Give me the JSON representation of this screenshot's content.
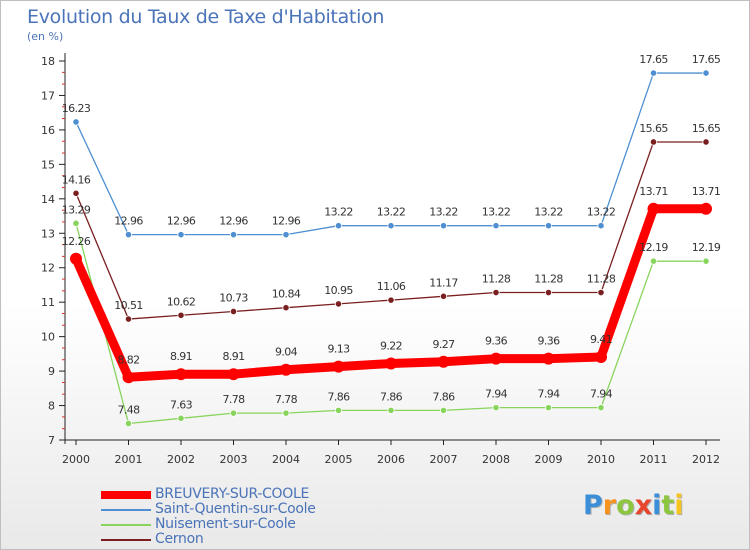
{
  "chart_data": {
    "type": "line",
    "title": "Evolution du Taux de Taxe d'Habitation",
    "subtitle": "(en %)",
    "xlabel": "",
    "ylabel": "",
    "ylim": [
      7,
      18
    ],
    "yticks": [
      "7",
      "8",
      "9",
      "10",
      "11",
      "12",
      "13",
      "14",
      "15",
      "16",
      "17",
      "18"
    ],
    "x": [
      "2000",
      "2001",
      "2002",
      "2003",
      "2004",
      "2005",
      "2006",
      "2007",
      "2008",
      "2009",
      "2010",
      "2011",
      "2012"
    ],
    "series": [
      {
        "name": "BREUVERY-SUR-COOLE",
        "color": "#ff0000",
        "values": [
          12.26,
          8.82,
          8.91,
          8.91,
          9.04,
          9.13,
          9.22,
          9.27,
          9.36,
          9.36,
          9.41,
          13.71,
          13.71
        ],
        "labels": [
          "12.26",
          "8.82",
          "8.91",
          "8.91",
          "9.04",
          "9.13",
          "9.22",
          "9.27",
          "9.36",
          "9.36",
          "9.41",
          "13.71",
          "13.71"
        ]
      },
      {
        "name": "Saint-Quentin-sur-Coole",
        "color": "#4d8fd1",
        "values": [
          16.23,
          12.96,
          12.96,
          12.96,
          12.96,
          13.22,
          13.22,
          13.22,
          13.22,
          13.22,
          13.22,
          17.65,
          17.65
        ],
        "labels": [
          "16.23",
          "12.96",
          "12.96",
          "12.96",
          "12.96",
          "13.22",
          "13.22",
          "13.22",
          "13.22",
          "13.22",
          "13.22",
          "17.65",
          "17.65"
        ]
      },
      {
        "name": "Nuisement-sur-Coole",
        "color": "#88d45c",
        "values": [
          13.29,
          7.48,
          7.63,
          7.78,
          7.78,
          7.86,
          7.86,
          7.86,
          7.94,
          7.94,
          7.94,
          12.19,
          12.19
        ],
        "labels": [
          "13.29",
          "7.48",
          "7.63",
          "7.78",
          "7.78",
          "7.86",
          "7.86",
          "7.86",
          "7.94",
          "7.94",
          "7.94",
          "12.19",
          "12.19"
        ]
      },
      {
        "name": "Cernon",
        "color": "#7a1f1f",
        "values": [
          14.16,
          10.51,
          10.62,
          10.73,
          10.84,
          10.95,
          11.06,
          11.17,
          11.28,
          11.28,
          11.28,
          15.65,
          15.65
        ],
        "labels": [
          "14.16",
          "10.51",
          "10.62",
          "10.73",
          "10.84",
          "10.95",
          "11.06",
          "11.17",
          "11.28",
          "11.28",
          "11.28",
          "15.65",
          "15.65"
        ]
      }
    ],
    "grid": false,
    "legend_position": "bottom-left"
  },
  "branding": {
    "logo_letters": [
      "P",
      "r",
      "o",
      "x",
      "i",
      "t",
      "i"
    ],
    "logo_colors": [
      "#3a8fd8",
      "#f7931e",
      "#8cc63f",
      "#e8452c",
      "#3a8fd8",
      "#8cc63f",
      "#f7c31e"
    ]
  }
}
